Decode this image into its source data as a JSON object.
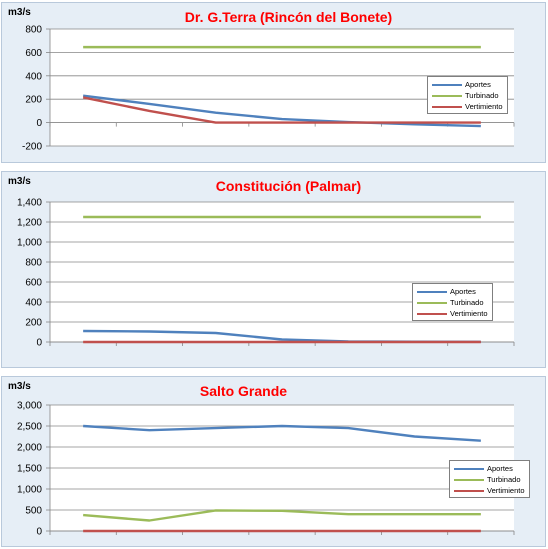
{
  "chart_data": [
    {
      "type": "line",
      "unit_label": "m3/s",
      "title": "Dr. G.Terra (Rincón del Bonete)",
      "yticks": [
        "800",
        "600",
        "400",
        "200",
        "0",
        "-200"
      ],
      "ylim": [
        -200,
        800
      ],
      "grid": true,
      "legend_position": "right",
      "series": [
        {
          "name": "Aportes",
          "color": "#4f81bd",
          "values": [
            230,
            160,
            85,
            30,
            5,
            -15,
            -30
          ]
        },
        {
          "name": "Turbinado",
          "color": "#9bbb59",
          "values": [
            645,
            645,
            645,
            645,
            645,
            645,
            645
          ]
        },
        {
          "name": "Vertimiento",
          "color": "#c0504d",
          "values": [
            215,
            100,
            0,
            0,
            0,
            0,
            0
          ]
        }
      ]
    },
    {
      "type": "line",
      "unit_label": "m3/s",
      "title": "Constitución (Palmar)",
      "yticks": [
        "1,400",
        "1,200",
        "1,000",
        "800",
        "600",
        "400",
        "200",
        "0"
      ],
      "ylim": [
        0,
        1400
      ],
      "grid": true,
      "legend_position": "right",
      "series": [
        {
          "name": "Aportes",
          "color": "#4f81bd",
          "values": [
            110,
            105,
            90,
            25,
            5,
            3,
            2
          ]
        },
        {
          "name": "Turbinado",
          "color": "#9bbb59",
          "values": [
            1250,
            1250,
            1250,
            1250,
            1250,
            1250,
            1250
          ]
        },
        {
          "name": "Vertimiento",
          "color": "#c0504d",
          "values": [
            0,
            0,
            0,
            0,
            0,
            0,
            0
          ]
        }
      ]
    },
    {
      "type": "line",
      "unit_label": "m3/s",
      "title": "Salto Grande",
      "yticks": [
        "3,000",
        "2,500",
        "2,000",
        "1,500",
        "1,000",
        "500",
        "0"
      ],
      "ylim": [
        0,
        3000
      ],
      "grid": true,
      "legend_position": "right",
      "series": [
        {
          "name": "Aportes",
          "color": "#4f81bd",
          "values": [
            2500,
            2400,
            2450,
            2500,
            2450,
            2250,
            2150
          ]
        },
        {
          "name": "Turbinado",
          "color": "#9bbb59",
          "values": [
            380,
            250,
            490,
            480,
            400,
            400,
            400
          ]
        },
        {
          "name": "Vertimiento",
          "color": "#c0504d",
          "values": [
            0,
            0,
            0,
            0,
            0,
            0,
            0
          ]
        }
      ]
    }
  ]
}
